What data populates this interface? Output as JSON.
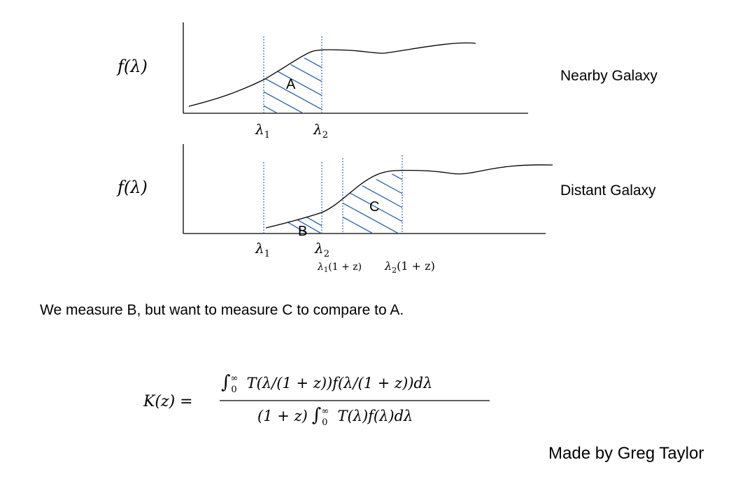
{
  "panels": {
    "nearby": {
      "ylabel": "f(λ)",
      "title": "Nearby Galaxy",
      "region_label": "A",
      "ticks": [
        {
          "base": "λ",
          "sub": "1",
          "suffix": ""
        },
        {
          "base": "λ",
          "sub": "2",
          "suffix": ""
        }
      ]
    },
    "distant": {
      "ylabel": "f(λ)",
      "title": "Distant Galaxy",
      "region_labels": [
        "B",
        "C"
      ],
      "ticks": [
        {
          "base": "λ",
          "sub": "1",
          "suffix": ""
        },
        {
          "base": "λ",
          "sub": "2",
          "suffix": ""
        },
        {
          "base": "λ",
          "sub": "1",
          "suffix": "(1 + z)"
        },
        {
          "base": "λ",
          "sub": "2",
          "suffix": "(1 + z)"
        }
      ]
    }
  },
  "caption": "We measure B, but want to measure C to compare to A.",
  "equation": {
    "lhs": "K(z) =",
    "numerator": "∫₀^∞ T(λ/(1 + z))f(λ/(1 + z))dλ",
    "denominator": "(1 + z) ∫₀^∞ T(λ)f(λ)dλ",
    "integral_symbol": "∫",
    "lower_limit": "0",
    "upper_limit": "∞",
    "numerator_integrand": "T(λ/(1 + z))f(λ/(1 + z))dλ",
    "denominator_prefix": "(1 + z)",
    "denominator_integrand": "T(λ)f(λ)dλ"
  },
  "credit": "Made by Greg Taylor",
  "colors": {
    "guide_line": "#3a6fb5",
    "hatch": "#2a5fa8",
    "curve": "#000000",
    "axis": "#000000"
  }
}
